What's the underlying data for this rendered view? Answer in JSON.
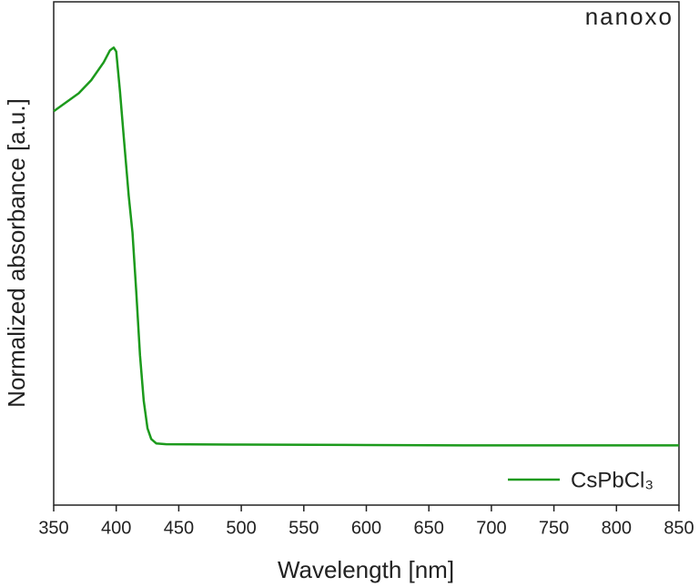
{
  "chart_data": {
    "type": "line",
    "brand": "nanoxo",
    "x_label": "Wavelength [nm]",
    "y_label": "Normalized absorbance [a.u.]",
    "x": [
      350,
      370,
      380,
      390,
      395,
      398,
      400,
      403,
      406,
      410,
      413,
      416,
      419,
      422,
      425,
      428,
      432,
      440,
      500,
      600,
      700,
      850
    ],
    "series": [
      {
        "name": "CsPbCl₃",
        "color": "#1c9a1c",
        "values": [
          0.84,
          0.885,
          0.918,
          0.963,
          0.993,
          1.0,
          0.99,
          0.89,
          0.776,
          0.627,
          0.535,
          0.387,
          0.227,
          0.112,
          0.043,
          0.016,
          0.005,
          0.003,
          0.002,
          0.001,
          0,
          0
        ]
      }
    ],
    "xlim": [
      350,
      850
    ],
    "xticks": [
      350,
      400,
      450,
      500,
      550,
      600,
      650,
      700,
      750,
      800,
      850
    ],
    "ylim": [
      -0.15,
      1.115
    ],
    "legend": "lower right"
  }
}
